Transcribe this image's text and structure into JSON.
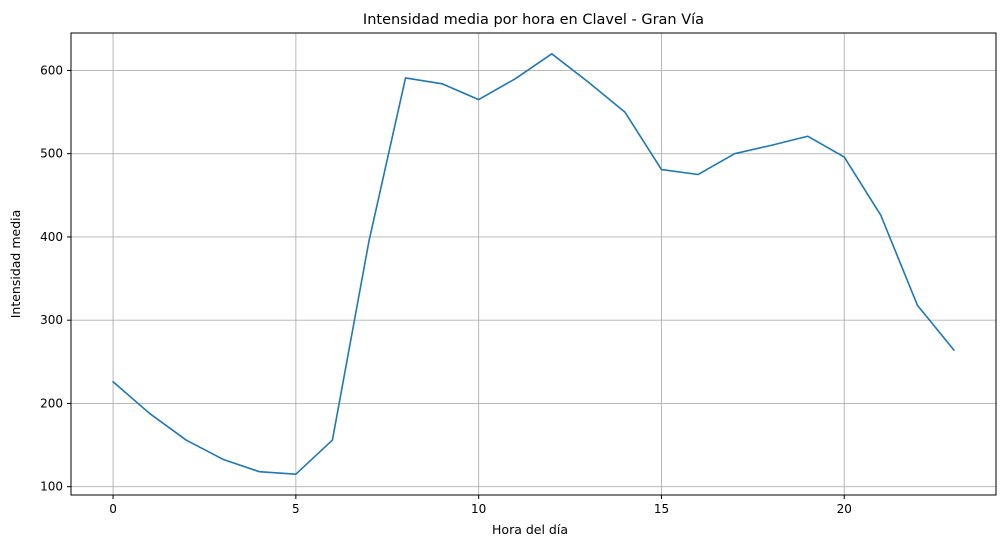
{
  "chart_data": {
    "type": "line",
    "title": "Intensidad media por hora en Clavel - Gran Vía",
    "xlabel": "Hora del día",
    "ylabel": "Intensidad media",
    "x": [
      0,
      1,
      2,
      3,
      4,
      5,
      6,
      7,
      8,
      9,
      10,
      11,
      12,
      13,
      14,
      15,
      16,
      17,
      18,
      19,
      20,
      21,
      22,
      23
    ],
    "series": [
      {
        "values": [
          226,
          188,
          156,
          133,
          118,
          115,
          156,
          395,
          591,
          584,
          565,
          590,
          620,
          586,
          550,
          481,
          475,
          500,
          510,
          521,
          496,
          426,
          318,
          264
        ]
      }
    ],
    "xlim": [
      -1.15,
      24.15
    ],
    "ylim": [
      90,
      645
    ],
    "xticks": [
      0,
      5,
      10,
      15,
      20
    ],
    "yticks": [
      100,
      200,
      300,
      400,
      500,
      600
    ],
    "grid": true,
    "line_color": "#1f77b4"
  }
}
